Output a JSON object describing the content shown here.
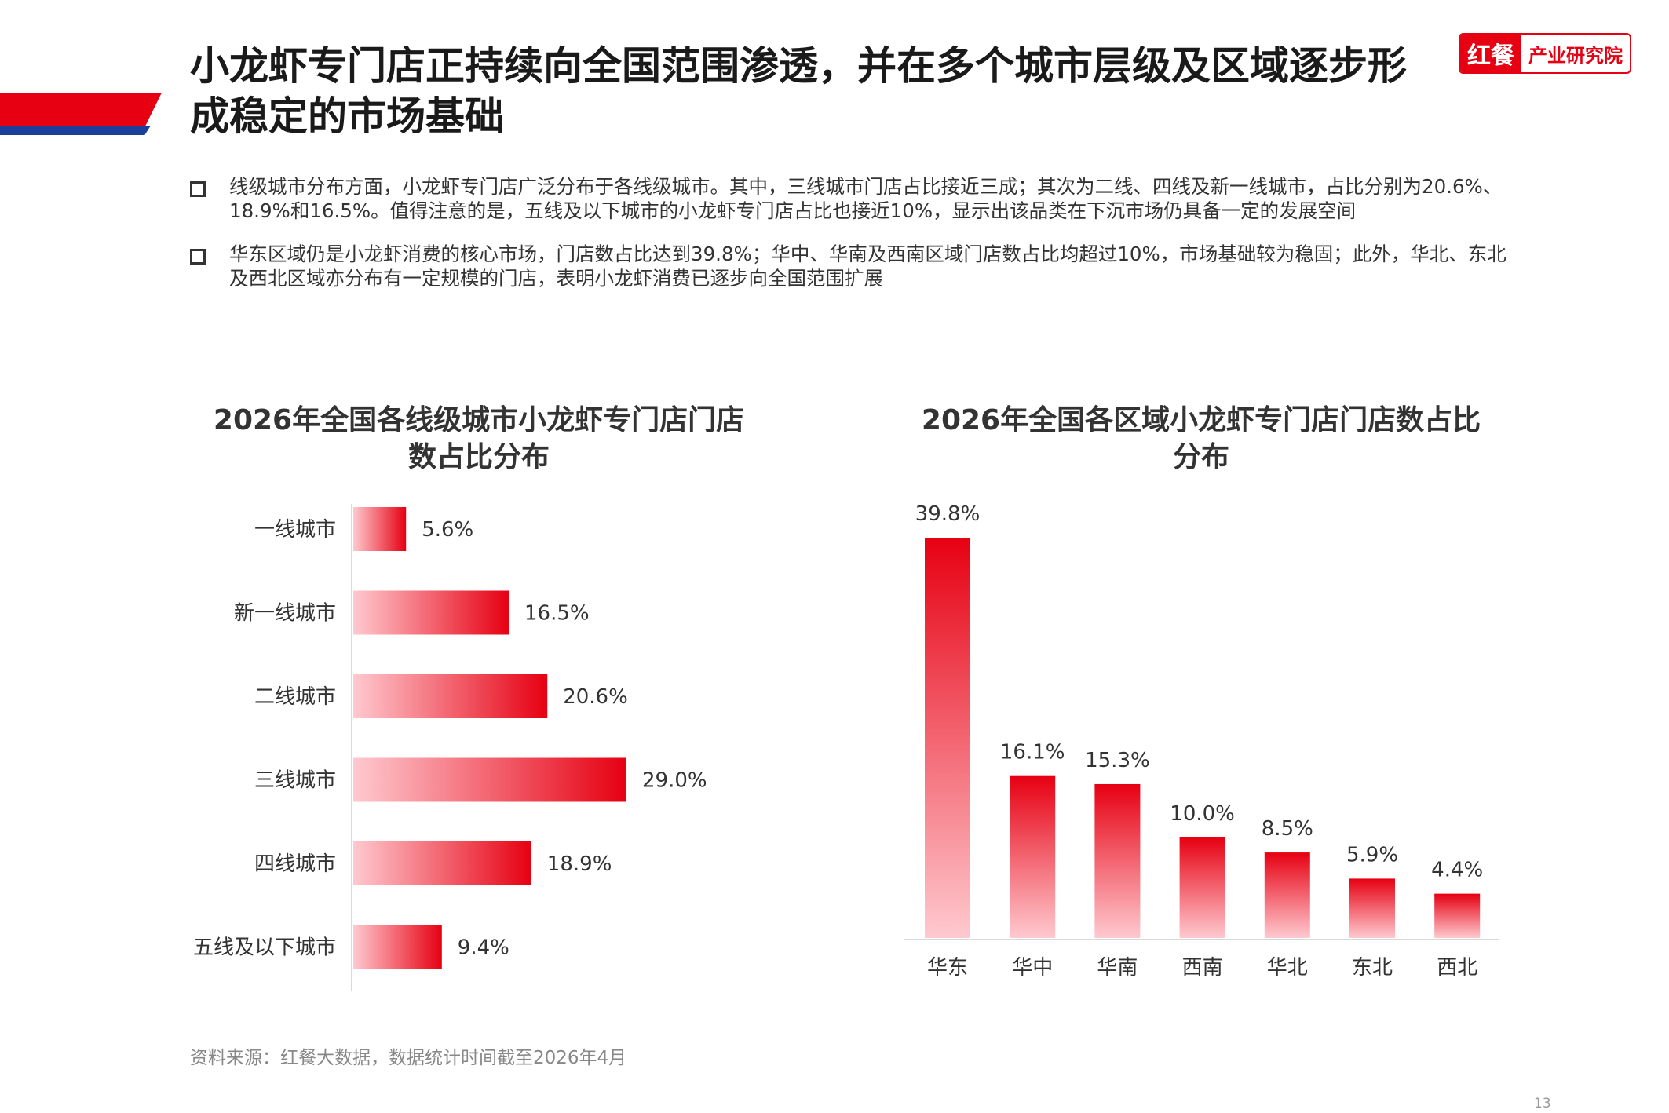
{
  "header": {
    "title": "小龙虾专门店正持续向全国范围渗透，并在多个城市层级及区域逐步形成稳定的市场基础",
    "logo_mark": "红餐",
    "logo_text": "产业研究院"
  },
  "bullets": [
    "线级城市分布方面，小龙虾专门店广泛分布于各线级城市。其中，三线城市门店占比接近三成；其次为二线、四线及新一线城市，占比分别为20.6%、18.9%和16.5%。值得注意的是，五线及以下城市的小龙虾专门店占比也接近10%，显示出该品类在下沉市场仍具备一定的发展空间",
    "华东区域仍是小龙虾消费的核心市场，门店数占比达到39.8%；华中、华南及西南区域门店数占比均超过10%，市场基础较为稳固；此外，华北、东北及西北区域亦分布有一定规模的门店，表明小龙虾消费已逐步向全国范围扩展"
  ],
  "chart_data": [
    {
      "type": "bar",
      "orientation": "horizontal",
      "title": "2026年全国各线级城市小龙虾专门店门店数占比分布",
      "categories": [
        "一线城市",
        "新一线城市",
        "二线城市",
        "三线城市",
        "四线城市",
        "五线及以下城市"
      ],
      "values": [
        5.6,
        16.5,
        20.6,
        29.0,
        18.9,
        9.4
      ],
      "value_labels": [
        "5.6%",
        "16.5%",
        "20.6%",
        "29.0%",
        "18.9%",
        "9.4%"
      ],
      "xlim": [
        0,
        33
      ],
      "grid": false,
      "colors": {
        "bar_start": "#ffc9cf",
        "bar_end": "#e60012"
      }
    },
    {
      "type": "bar",
      "orientation": "vertical",
      "title": "2026年全国各区域小龙虾专门店门店数占比分布",
      "categories": [
        "华东",
        "华中",
        "华南",
        "西南",
        "华北",
        "东北",
        "西北"
      ],
      "values": [
        39.8,
        16.1,
        15.3,
        10.0,
        8.5,
        5.9,
        4.4
      ],
      "value_labels": [
        "39.8%",
        "16.1%",
        "15.3%",
        "10.0%",
        "8.5%",
        "5.9%",
        "4.4%"
      ],
      "ylim": [
        0,
        39.8
      ],
      "grid": false,
      "colors": {
        "bar_top": "#e60012",
        "bar_bottom": "#ffc9cf"
      }
    }
  ],
  "footer": {
    "source": "资料来源：红餐大数据，数据统计时间截至2026年4月",
    "page": "13"
  }
}
